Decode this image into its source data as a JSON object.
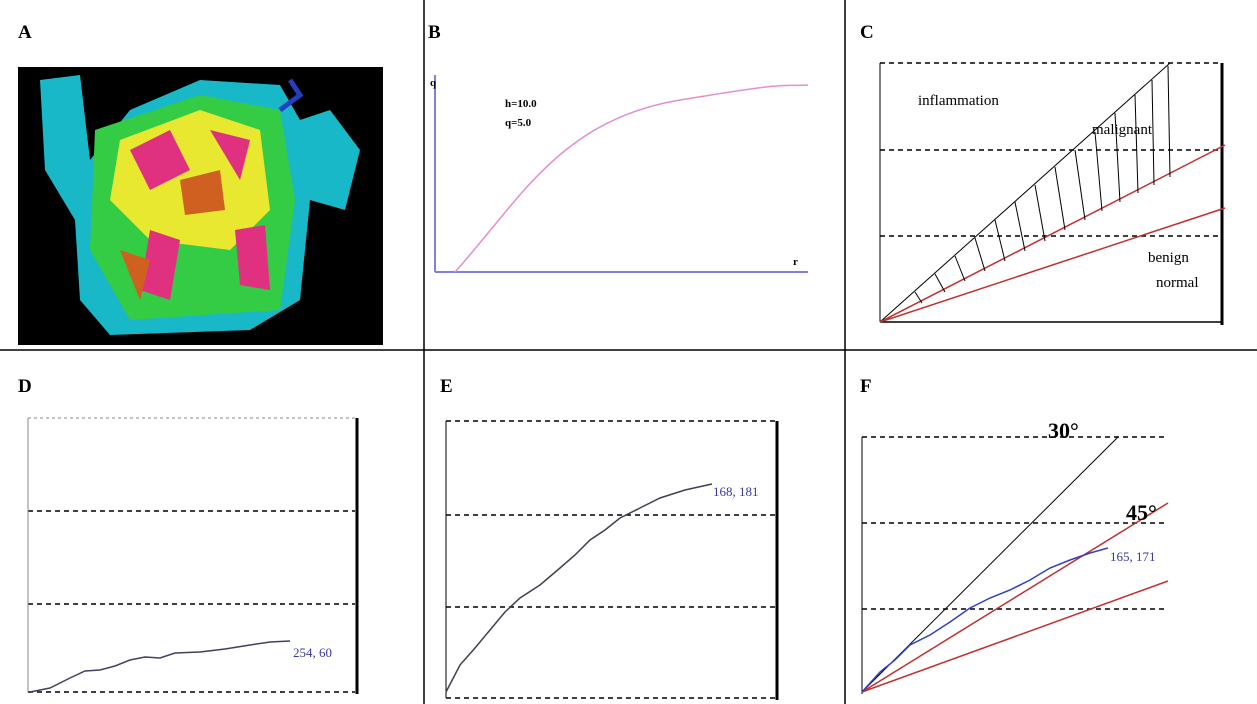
{
  "panels": [
    {
      "label": "A"
    },
    {
      "label": "B",
      "y_axis": "q",
      "x_axis": "r",
      "params": [
        "h=10.0",
        "q=5.0"
      ]
    },
    {
      "label": "C",
      "regions": [
        "inflammation",
        "malignant",
        "benign",
        "normal"
      ]
    },
    {
      "label": "D",
      "point_label": "254, 60"
    },
    {
      "label": "E",
      "point_label": "168, 181"
    },
    {
      "label": "F",
      "angles": [
        "30°",
        "45°"
      ],
      "point_label": "165, 171"
    }
  ]
}
